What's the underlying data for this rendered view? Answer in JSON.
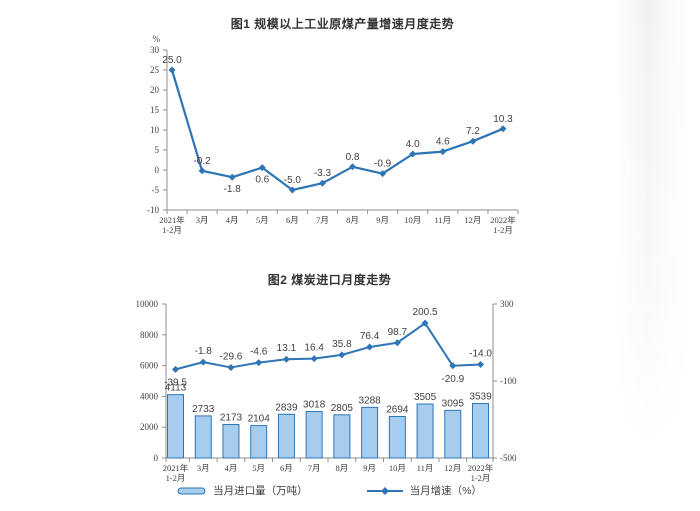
{
  "style": {
    "title_color": "#333333",
    "label_color": "#3f3f3f",
    "tick_color": "#404040",
    "axis_color": "#8f8f8f",
    "line_color": "#2E75B6",
    "bar_fill": "#A7CDEE",
    "bar_stroke": "#2E75B6",
    "page_background": "#ffffff"
  },
  "chart_data": [
    {
      "type": "line",
      "title": "图1  规模以上工业原煤产量增速月度走势",
      "ylabel": "%",
      "categories": [
        "2021年\n1-2月",
        "3月",
        "4月",
        "5月",
        "6月",
        "7月",
        "8月",
        "9月",
        "10月",
        "11月",
        "12月",
        "2022年\n1-2月"
      ],
      "values": [
        25.0,
        -0.2,
        -1.8,
        0.6,
        -5.0,
        -3.3,
        0.8,
        -0.9,
        4.0,
        4.6,
        7.2,
        10.3
      ],
      "label_positions": [
        "above",
        "above",
        "below",
        "below",
        "above",
        "above",
        "above",
        "above",
        "above",
        "above",
        "above",
        "above"
      ],
      "ylim": [
        -10,
        30
      ],
      "ytick_step": 5,
      "grid": false,
      "legend_position": "none"
    },
    {
      "type": "bar+line",
      "title": "图2  煤炭进口月度走势",
      "categories": [
        "2021年\n1-2月",
        "3月",
        "4月",
        "5月",
        "6月",
        "7月",
        "8月",
        "9月",
        "10月",
        "11月",
        "12月",
        "2022年\n1-2月"
      ],
      "series": [
        {
          "name": "当月进口量（万吨）",
          "type": "bar",
          "axis": "left",
          "values": [
            4113,
            2733,
            2173,
            2104,
            2839,
            3018,
            2805,
            3288,
            2694,
            3505,
            3095,
            3539
          ]
        },
        {
          "name": "当月增速（%）",
          "type": "line",
          "axis": "right",
          "values": [
            -39.5,
            -1.8,
            -29.6,
            -4.6,
            13.1,
            16.4,
            35.8,
            76.4,
            98.7,
            200.5,
            -20.9,
            -14.0
          ],
          "label_positions": [
            "below",
            "above",
            "above",
            "above",
            "above",
            "above",
            "above",
            "above",
            "above",
            "above",
            "below",
            "above"
          ]
        }
      ],
      "left_ylim": [
        0,
        10000
      ],
      "left_ytick_step": 2000,
      "right_ylim": [
        -500,
        300
      ],
      "right_yticks": [
        300,
        -100,
        -500
      ],
      "grid": false,
      "legend_position": "bottom"
    }
  ]
}
